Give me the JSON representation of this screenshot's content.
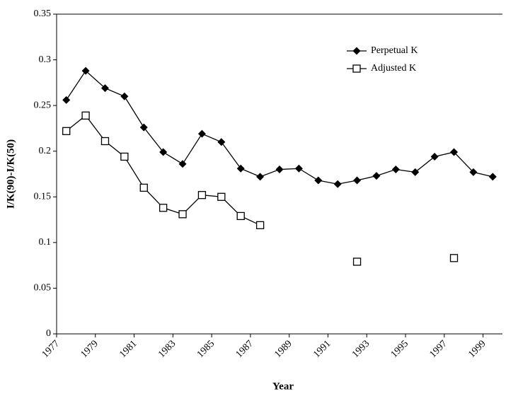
{
  "chart_data": {
    "type": "line",
    "xlabel": "Year",
    "ylabel": "I/K(90)-I/K(50)",
    "x": [
      1977.5,
      1978.5,
      1979.5,
      1980.5,
      1981.5,
      1982.5,
      1983.5,
      1984.5,
      1985.5,
      1986.5,
      1987.5,
      1988.5,
      1989.5,
      1990.5,
      1991.5,
      1992.5,
      1993.5,
      1994.5,
      1995.5,
      1996.5,
      1997.5,
      1998.5,
      1999.5
    ],
    "series": [
      {
        "name": "Perpetual K",
        "color": "#000000",
        "marker": "diamond",
        "values": [
          0.256,
          0.288,
          0.269,
          0.26,
          0.226,
          0.199,
          0.186,
          0.219,
          0.21,
          0.181,
          0.172,
          0.18,
          0.181,
          0.168,
          0.164,
          0.168,
          0.173,
          0.18,
          0.177,
          0.194,
          0.199,
          0.177,
          0.172
        ]
      },
      {
        "name": "Adjusted K",
        "color": "#000000",
        "marker": "square",
        "values": [
          0.222,
          0.239,
          0.211,
          0.194,
          0.16,
          0.138,
          0.131,
          0.152,
          0.15,
          0.129,
          0.119,
          null,
          null,
          null,
          null,
          0.079,
          null,
          null,
          null,
          null,
          0.083,
          null,
          null
        ]
      }
    ],
    "xlim": [
      1977,
      2000
    ],
    "xticks": [
      1977,
      1979,
      1981,
      1983,
      1985,
      1987,
      1989,
      1991,
      1993,
      1995,
      1997,
      1999
    ],
    "ylim": [
      0,
      0.35
    ],
    "yticks": [
      0,
      0.05,
      0.1,
      0.15,
      0.2,
      0.25,
      0.3,
      0.35
    ],
    "grid": false,
    "legend": "upper right"
  }
}
